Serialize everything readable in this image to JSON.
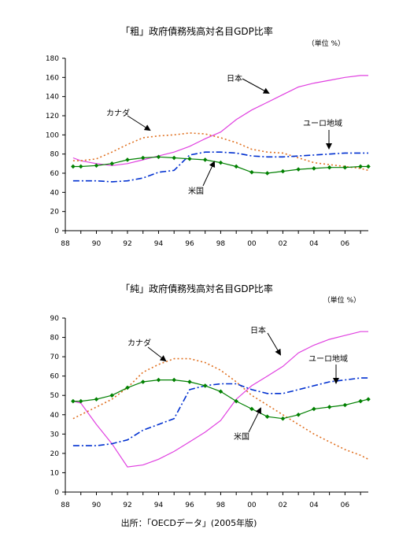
{
  "source": "出所：「OECDデータ」(2005年版)",
  "chart_data": [
    {
      "type": "line",
      "title": "「粗」政府債務残高対名目GDP比率",
      "unit": "（単位 %）",
      "xlabel": "",
      "ylabel": "",
      "ylim": [
        0,
        180
      ],
      "yticks": [
        "0",
        "20",
        "40",
        "60",
        "80",
        "100",
        "120",
        "140",
        "160",
        "180"
      ],
      "xlim": [
        1988,
        2007.5
      ],
      "xticks": [
        "88",
        "90",
        "92",
        "94",
        "96",
        "98",
        "00",
        "02",
        "04",
        "06"
      ],
      "grid": false,
      "legend": "none",
      "annotations": [
        {
          "label": "日本",
          "series": "japan"
        },
        {
          "label": "カナダ",
          "series": "canada"
        },
        {
          "label": "ユーロ地域",
          "series": "euro"
        },
        {
          "label": "米国",
          "series": "us"
        }
      ],
      "series": [
        {
          "key": "japan",
          "color": "#e040e0",
          "style": "solid",
          "x": [
            1988.5,
            1989,
            1990,
            1991,
            1992,
            1993,
            1994,
            1995,
            1996,
            1997,
            1998,
            1999,
            2000,
            2001,
            2002,
            2003,
            2004,
            2005,
            2006,
            2007,
            2007.5
          ],
          "y": [
            76,
            73,
            70,
            68,
            70,
            74,
            78,
            82,
            88,
            96,
            103,
            116,
            126,
            134,
            142,
            150,
            154,
            157,
            160,
            162,
            162
          ]
        },
        {
          "key": "canada",
          "color": "#e07020",
          "style": "dotted",
          "x": [
            1988.5,
            1989,
            1990,
            1991,
            1992,
            1993,
            1994,
            1995,
            1996,
            1997,
            1998,
            1999,
            2000,
            2001,
            2002,
            2003,
            2004,
            2005,
            2006,
            2007,
            2007.5
          ],
          "y": [
            73,
            73,
            75,
            82,
            90,
            97,
            99,
            100,
            102,
            101,
            97,
            92,
            85,
            82,
            81,
            76,
            71,
            69,
            67,
            65,
            63
          ]
        },
        {
          "key": "euro",
          "color": "#0030d0",
          "style": "dashdot",
          "x": [
            1988.5,
            1989,
            1990,
            1991,
            1992,
            1993,
            1994,
            1995,
            1996,
            1997,
            1998,
            1999,
            2000,
            2001,
            2002,
            2003,
            2004,
            2005,
            2006,
            2007,
            2007.5
          ],
          "y": [
            52,
            52,
            52,
            51,
            52,
            55,
            61,
            63,
            79,
            82,
            82,
            81,
            78,
            77,
            77,
            78,
            79,
            80,
            81,
            81,
            81
          ]
        },
        {
          "key": "us",
          "color": "#008000",
          "style": "solid-diamond",
          "x": [
            1988.5,
            1989,
            1990,
            1991,
            1992,
            1993,
            1994,
            1995,
            1996,
            1997,
            1998,
            1999,
            2000,
            2001,
            2002,
            2003,
            2004,
            2005,
            2006,
            2007,
            2007.5
          ],
          "y": [
            67,
            67,
            68,
            70,
            74,
            76,
            77,
            76,
            75,
            74,
            71,
            67,
            61,
            60,
            62,
            64,
            65,
            66,
            66,
            67,
            67
          ]
        }
      ]
    },
    {
      "type": "line",
      "title": "「純」政府債務残高対名目GDP比率",
      "unit": "（単位 %）",
      "xlabel": "",
      "ylabel": "",
      "ylim": [
        0,
        90
      ],
      "yticks": [
        "0",
        "10",
        "20",
        "30",
        "40",
        "50",
        "60",
        "70",
        "80",
        "90"
      ],
      "xlim": [
        1988,
        2007.5
      ],
      "xticks": [
        "88",
        "90",
        "92",
        "94",
        "96",
        "98",
        "00",
        "02",
        "04",
        "06"
      ],
      "grid": false,
      "legend": "none",
      "annotations": [
        {
          "label": "日本",
          "series": "japan"
        },
        {
          "label": "カナダ",
          "series": "canada"
        },
        {
          "label": "ユーロ地域",
          "series": "euro"
        },
        {
          "label": "米国",
          "series": "us"
        }
      ],
      "series": [
        {
          "key": "japan",
          "color": "#e040e0",
          "style": "solid",
          "x": [
            1988.5,
            1989,
            1990,
            1991,
            1992,
            1993,
            1994,
            1995,
            1996,
            1997,
            1998,
            1999,
            2000,
            2001,
            2002,
            2003,
            2004,
            2005,
            2006,
            2007,
            2007.5
          ],
          "y": [
            47,
            46,
            35,
            25,
            13,
            14,
            17,
            21,
            26,
            31,
            37,
            48,
            55,
            60,
            65,
            72,
            76,
            79,
            81,
            83,
            83
          ]
        },
        {
          "key": "canada",
          "color": "#e07020",
          "style": "dotted",
          "x": [
            1988.5,
            1989,
            1990,
            1991,
            1992,
            1993,
            1994,
            1995,
            1996,
            1997,
            1998,
            1999,
            2000,
            2001,
            2002,
            2003,
            2004,
            2005,
            2006,
            2007,
            2007.5
          ],
          "y": [
            38,
            40,
            44,
            48,
            54,
            62,
            66,
            69,
            69,
            67,
            63,
            57,
            50,
            45,
            40,
            35,
            30,
            26,
            22,
            19,
            17
          ]
        },
        {
          "key": "euro",
          "color": "#0030d0",
          "style": "dashdot",
          "x": [
            1988.5,
            1989,
            1990,
            1991,
            1992,
            1993,
            1994,
            1995,
            1996,
            1997,
            1998,
            1999,
            2000,
            2001,
            2002,
            2003,
            2004,
            2005,
            2006,
            2007,
            2007.5
          ],
          "y": [
            24,
            24,
            24,
            25,
            27,
            32,
            35,
            38,
            53,
            55,
            56,
            56,
            53,
            51,
            51,
            53,
            55,
            57,
            58,
            59,
            59
          ]
        },
        {
          "key": "us",
          "color": "#008000",
          "style": "solid-diamond",
          "x": [
            1988.5,
            1989,
            1990,
            1991,
            1992,
            1993,
            1994,
            1995,
            1996,
            1997,
            1998,
            1999,
            2000,
            2001,
            2002,
            2003,
            2004,
            2005,
            2006,
            2007,
            2007.5
          ],
          "y": [
            47,
            47,
            48,
            50,
            54,
            57,
            58,
            58,
            57,
            55,
            52,
            47,
            43,
            39,
            38,
            40,
            43,
            44,
            45,
            47,
            48
          ]
        }
      ]
    }
  ]
}
